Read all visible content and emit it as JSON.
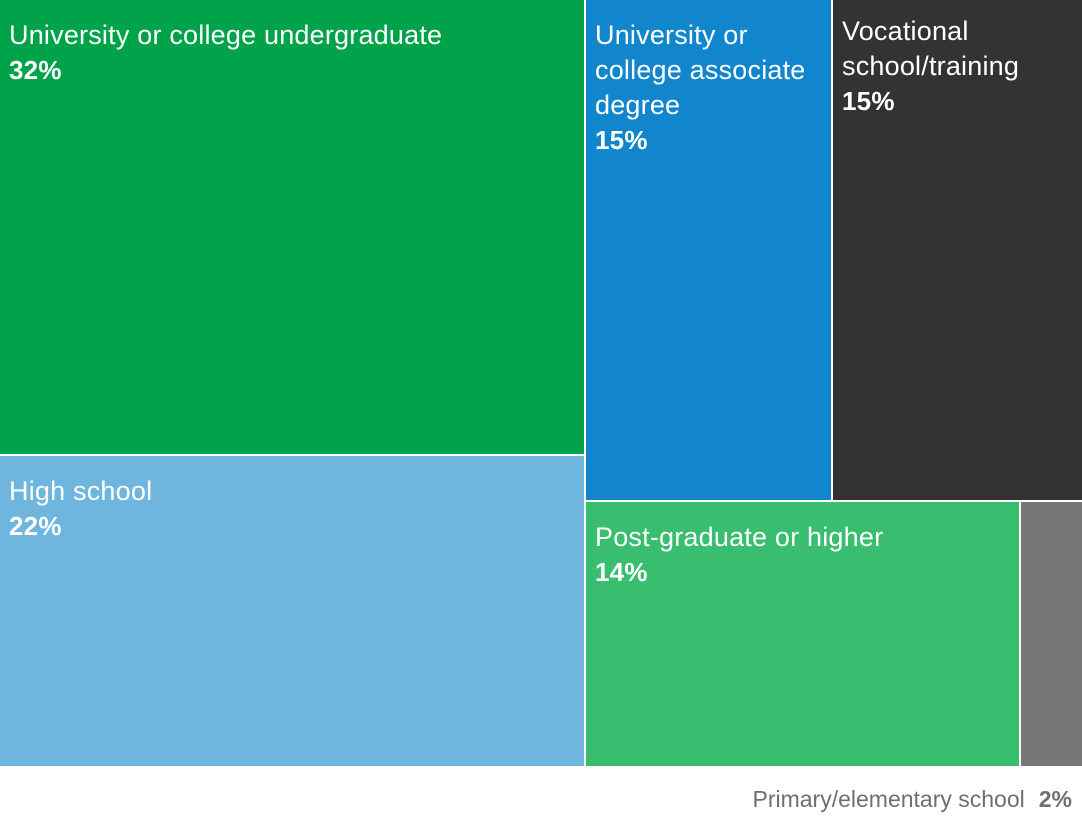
{
  "chart_data": {
    "type": "treemap",
    "unit": "%",
    "items": [
      {
        "label": "University or college undergraduate",
        "value": 32,
        "value_label": "32%",
        "color": "#00a34a",
        "label_inside": true
      },
      {
        "label": "High school",
        "value": 22,
        "value_label": "22%",
        "color": "#6fb6df",
        "label_inside": true
      },
      {
        "label": "University or college associate degree",
        "value": 15,
        "value_label": "15%",
        "color": "#1186cc",
        "label_inside": true
      },
      {
        "label": "Vocational school/training",
        "value": 15,
        "value_label": "15%",
        "color": "#333333",
        "label_inside": true
      },
      {
        "label": "Post-graduate or higher",
        "value": 14,
        "value_label": "14%",
        "color": "#39be6f",
        "label_inside": true
      },
      {
        "label": "Primary/elementary school",
        "value": 2,
        "value_label": "2%",
        "color": "#777777",
        "label_inside": false
      }
    ]
  }
}
